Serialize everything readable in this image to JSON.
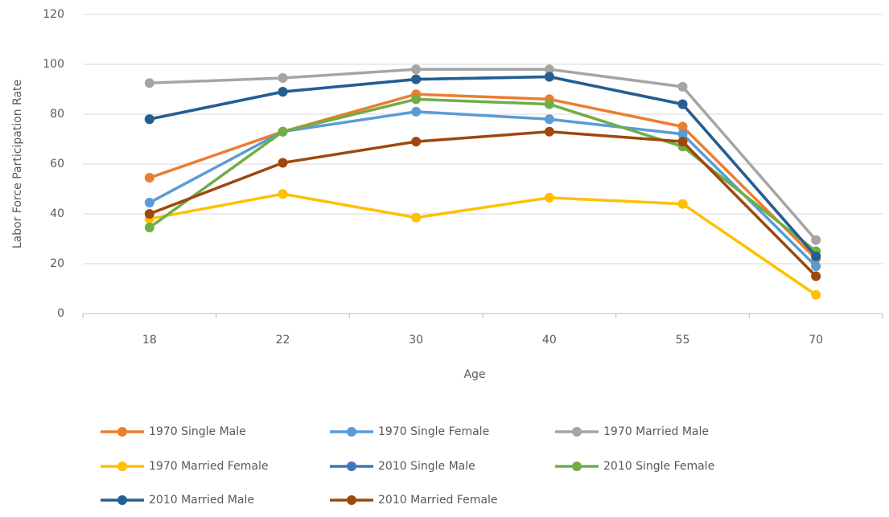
{
  "chart_data": {
    "type": "line",
    "x_label": "Age",
    "y_label": "Labor Force Participation Rate",
    "categories": [
      "18",
      "22",
      "30",
      "40",
      "55",
      "70"
    ],
    "ylim": [
      0,
      120
    ],
    "yticks": [
      0,
      20,
      40,
      60,
      80,
      100,
      120
    ],
    "grid": true,
    "series": [
      {
        "name": "1970 Single Male",
        "color": "#ed7d31",
        "values": [
          54.5,
          73,
          88,
          86,
          75,
          22
        ]
      },
      {
        "name": "1970 Single Female",
        "color": "#5b9bd5",
        "values": [
          44.5,
          73,
          81,
          78,
          72,
          19
        ]
      },
      {
        "name": "1970 Married Male",
        "color": "#a5a5a5",
        "values": [
          92.5,
          94.5,
          98,
          98,
          91,
          29.5
        ]
      },
      {
        "name": "1970 Married Female",
        "color": "#ffc000",
        "values": [
          38,
          48,
          38.5,
          46.5,
          44,
          7.5
        ]
      },
      {
        "name": "2010 Single Male",
        "color": "#4472c4",
        "values": [
          78,
          89,
          94,
          95,
          84,
          23
        ]
      },
      {
        "name": "2010 Single Female",
        "color": "#70ad47",
        "values": [
          34.5,
          73,
          86,
          84,
          67,
          25
        ]
      },
      {
        "name": "2010 Married Male",
        "color": "#255e91",
        "values": [
          78,
          89,
          94,
          95,
          84,
          23
        ]
      },
      {
        "name": "2010 Married Female",
        "color": "#9e480e",
        "values": [
          40,
          60.5,
          69,
          73,
          69,
          15
        ]
      }
    ]
  }
}
